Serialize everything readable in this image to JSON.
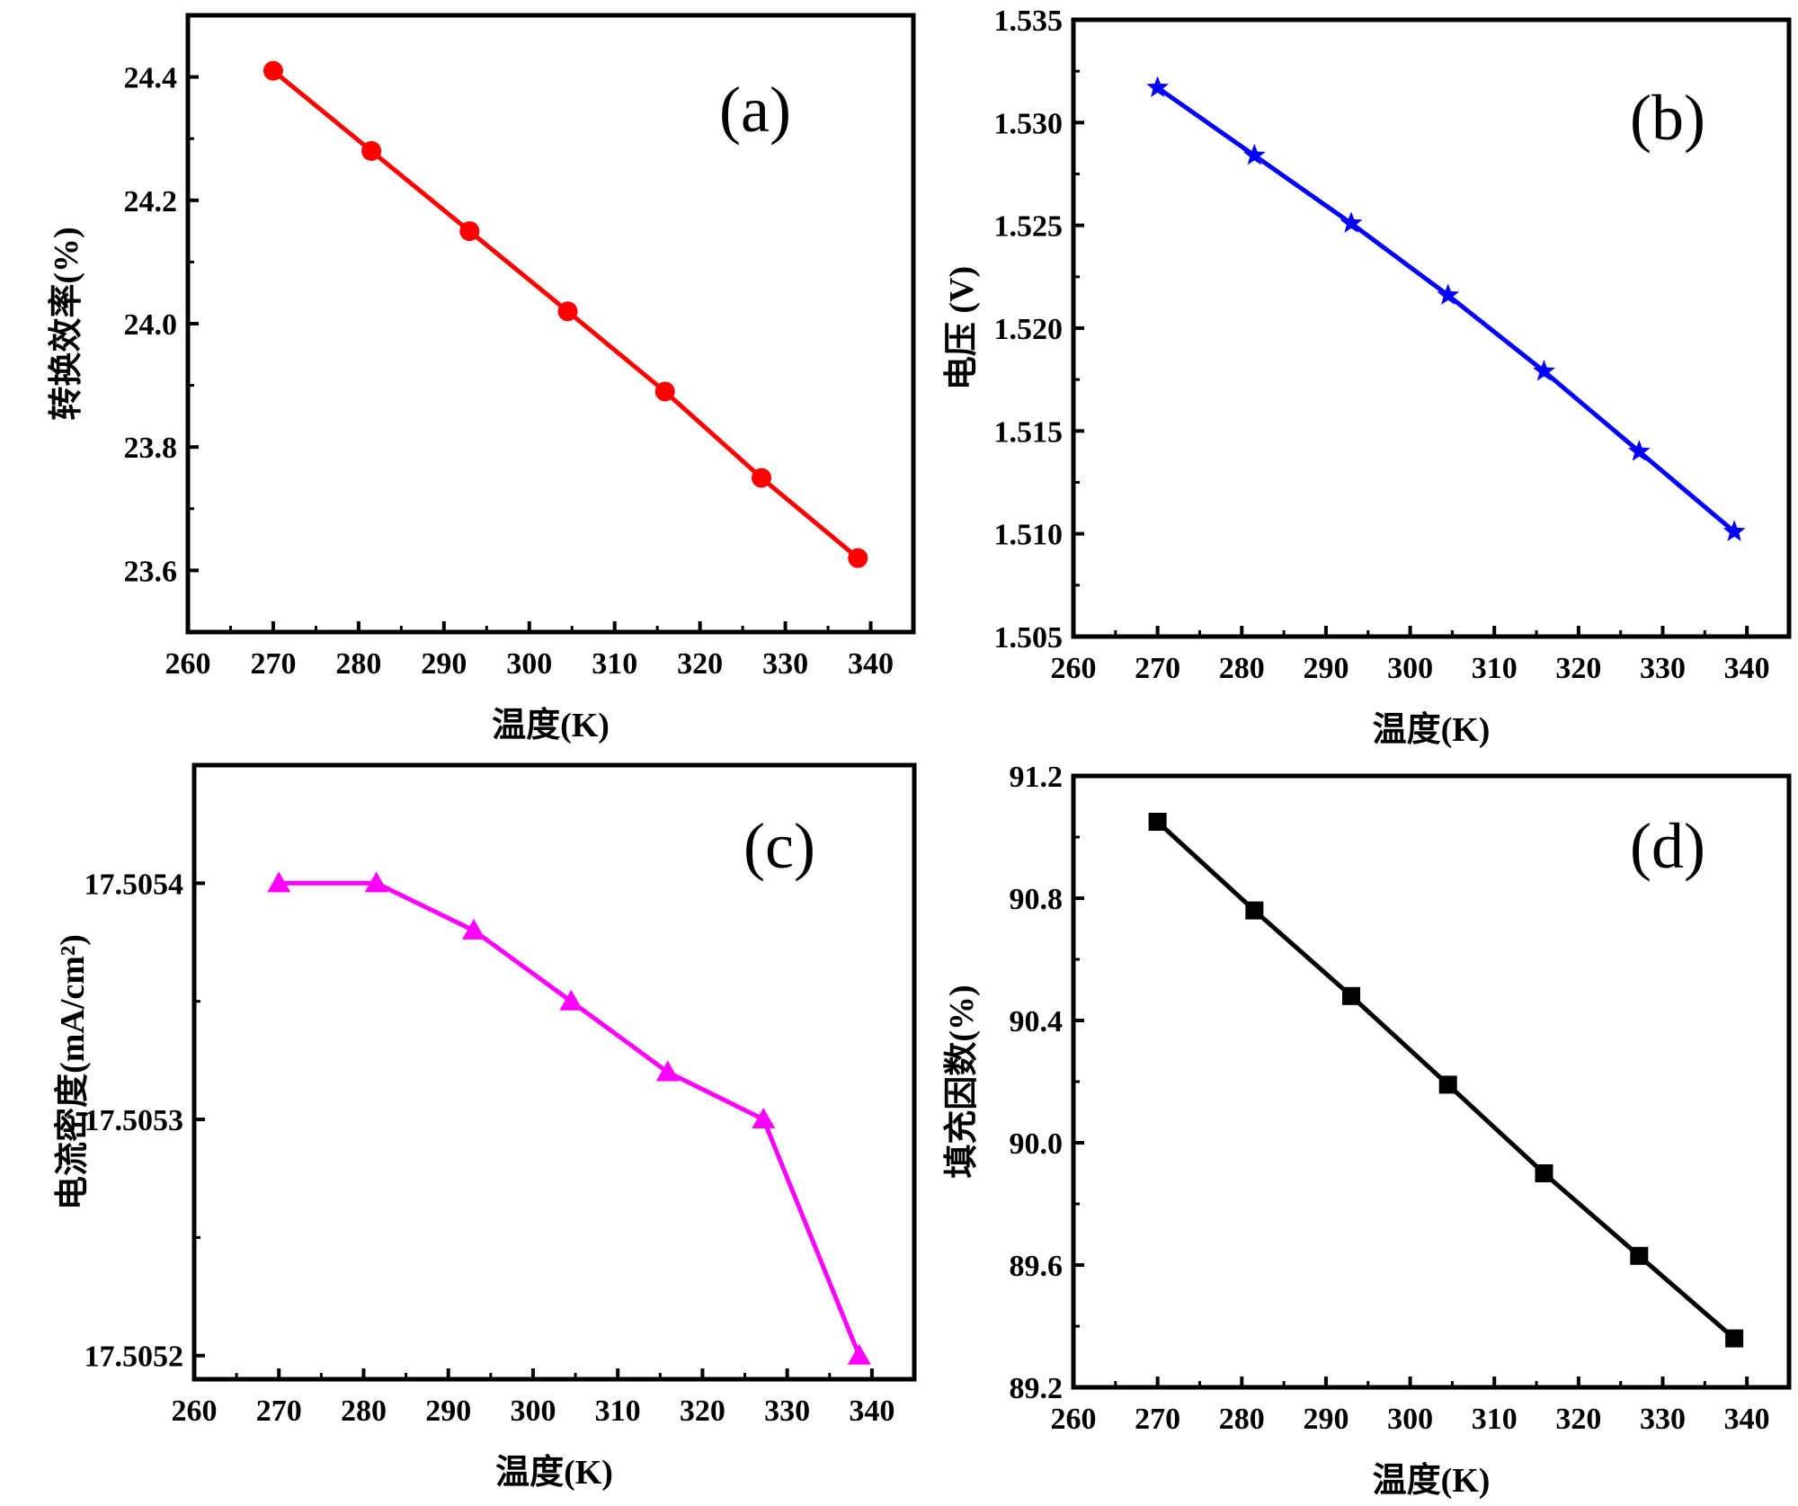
{
  "chart_data": [
    {
      "type": "line",
      "panel_label": "(a)",
      "title": "",
      "xlabel": "温度(K)",
      "ylabel": "转换效率(%)",
      "xlim": [
        260,
        345
      ],
      "ylim": [
        23.5,
        24.5
      ],
      "xticks": [
        260,
        270,
        280,
        290,
        300,
        310,
        320,
        330,
        340
      ],
      "yticks": [
        23.6,
        23.8,
        24.0,
        24.2,
        24.4
      ],
      "xtick_labels": [
        "260",
        "270",
        "280",
        "290",
        "300",
        "310",
        "320",
        "330",
        "340"
      ],
      "ytick_labels": [
        "23.6",
        "23.8",
        "24.0",
        "24.2",
        "24.4"
      ],
      "x": [
        270,
        281.5,
        293,
        304.5,
        315.9,
        327.2,
        338.5
      ],
      "series": [
        {
          "name": "转换效率",
          "values": [
            24.41,
            24.28,
            24.15,
            24.02,
            23.89,
            23.75,
            23.62
          ],
          "color": "#ff0000",
          "marker": "circle"
        }
      ],
      "grid": false,
      "legend": null
    },
    {
      "type": "line",
      "panel_label": "(b)",
      "title": "",
      "xlabel": "温度(K)",
      "ylabel": "电压 (V)",
      "xlim": [
        260,
        345
      ],
      "ylim": [
        1.505,
        1.535
      ],
      "xticks": [
        260,
        270,
        280,
        290,
        300,
        310,
        320,
        330,
        340
      ],
      "yticks": [
        1.505,
        1.51,
        1.515,
        1.52,
        1.525,
        1.53,
        1.535
      ],
      "xtick_labels": [
        "260",
        "270",
        "280",
        "290",
        "300",
        "310",
        "320",
        "330",
        "340"
      ],
      "ytick_labels": [
        "1.505",
        "1.510",
        "1.515",
        "1.520",
        "1.525",
        "1.530",
        "1.535"
      ],
      "x": [
        270,
        281.5,
        293,
        304.5,
        315.9,
        327.2,
        338.5
      ],
      "series": [
        {
          "name": "电压",
          "values": [
            1.5317,
            1.5284,
            1.5251,
            1.5216,
            1.5179,
            1.514,
            1.5101
          ],
          "color": "#0000ff",
          "marker": "star"
        }
      ],
      "grid": false,
      "legend": null
    },
    {
      "type": "line",
      "panel_label": "(c)",
      "title": "",
      "xlabel": "温度(K)",
      "ylabel": "电流密度(mA/cm²)",
      "xlim": [
        260,
        345
      ],
      "ylim": [
        17.50519,
        17.50545
      ],
      "xticks": [
        260,
        270,
        280,
        290,
        300,
        310,
        320,
        330,
        340
      ],
      "yticks": [
        17.5052,
        17.5053,
        17.5054
      ],
      "xtick_labels": [
        "260",
        "270",
        "280",
        "290",
        "300",
        "310",
        "320",
        "330",
        "340"
      ],
      "ytick_labels": [
        "17.5052",
        "17.5053",
        "17.5054"
      ],
      "x": [
        270,
        281.5,
        293,
        304.5,
        315.9,
        327.2,
        338.5
      ],
      "series": [
        {
          "name": "电流密度",
          "values": [
            17.5054,
            17.5054,
            17.50538,
            17.50535,
            17.50532,
            17.5053,
            17.5052
          ],
          "color": "#ff00ff",
          "marker": "triangle"
        }
      ],
      "grid": false,
      "legend": null
    },
    {
      "type": "line",
      "panel_label": "(d)",
      "title": "",
      "xlabel": "温度(K)",
      "ylabel": "填充因数(%)",
      "xlim": [
        260,
        345
      ],
      "ylim": [
        89.2,
        91.2
      ],
      "xticks": [
        260,
        270,
        280,
        290,
        300,
        310,
        320,
        330,
        340
      ],
      "yticks": [
        89.2,
        89.6,
        90.0,
        90.4,
        90.8,
        91.2
      ],
      "xtick_labels": [
        "260",
        "270",
        "280",
        "290",
        "300",
        "310",
        "320",
        "330",
        "340"
      ],
      "ytick_labels": [
        "89.2",
        "89.6",
        "90.0",
        "90.4",
        "90.8",
        "91.2"
      ],
      "x": [
        270,
        281.5,
        293,
        304.5,
        315.9,
        327.2,
        338.5
      ],
      "series": [
        {
          "name": "填充因数",
          "values": [
            91.05,
            90.76,
            90.48,
            90.19,
            89.9,
            89.63,
            89.36
          ],
          "color": "#000000",
          "marker": "square"
        }
      ],
      "grid": false,
      "legend": null
    }
  ]
}
